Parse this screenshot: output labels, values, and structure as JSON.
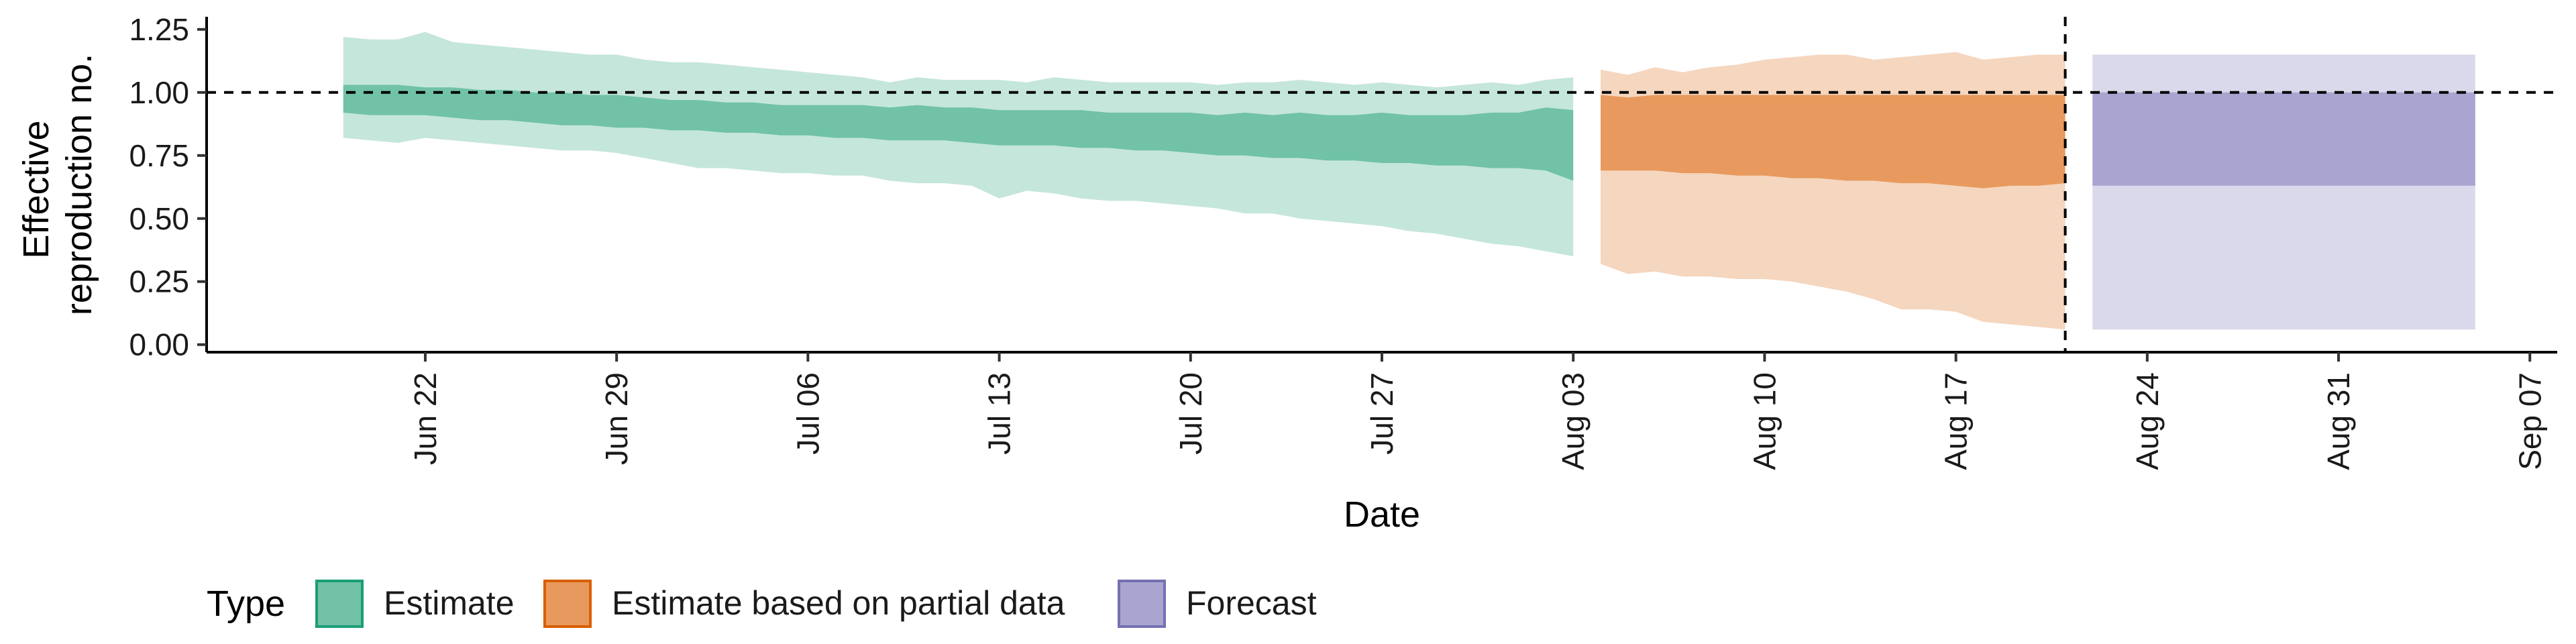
{
  "chart_data": {
    "type": "area",
    "title": "",
    "xlabel": "Date",
    "ylabel": [
      "Effective",
      "reproduction no."
    ],
    "ylim": [
      -0.03,
      1.3
    ],
    "xlim": [
      "2020-06-14",
      "2020-09-08"
    ],
    "x_ticks": [
      "2020-06-22",
      "2020-06-29",
      "2020-07-06",
      "2020-07-13",
      "2020-07-20",
      "2020-07-27",
      "2020-08-03",
      "2020-08-10",
      "2020-08-17",
      "2020-08-24",
      "2020-08-31",
      "2020-09-07"
    ],
    "x_tick_labels": [
      "Jun 22",
      "Jun 29",
      "Jul 06",
      "Jul 13",
      "Jul 20",
      "Jul 27",
      "Aug 03",
      "Aug 10",
      "Aug 17",
      "Aug 24",
      "Aug 31",
      "Sep 07"
    ],
    "y_ticks": [
      0.0,
      0.25,
      0.5,
      0.75,
      1.0,
      1.25
    ],
    "y_tick_labels": [
      "0.00",
      "0.25",
      "0.50",
      "0.75",
      "1.00",
      "1.25"
    ],
    "reference_hline": 1.0,
    "reference_vline": "2020-08-21",
    "grid": false,
    "legend": {
      "title": "Type",
      "position": "bottom",
      "entries": [
        {
          "label": "Estimate",
          "fill": "#71C2A6",
          "border": "#1B9E77"
        },
        {
          "label": "Estimate based on partial data",
          "fill": "#E89A5E",
          "border": "#D95F02"
        },
        {
          "label": "Forecast",
          "fill": "#A9A5D0",
          "border": "#7570B3"
        }
      ]
    },
    "series": [
      {
        "name": "Estimate",
        "color_outer": "#C5E6DB",
        "color_inner": "#71C2A6",
        "x": [
          "2020-06-19",
          "2020-06-20",
          "2020-06-21",
          "2020-06-22",
          "2020-06-23",
          "2020-06-24",
          "2020-06-25",
          "2020-06-26",
          "2020-06-27",
          "2020-06-28",
          "2020-06-29",
          "2020-06-30",
          "2020-07-01",
          "2020-07-02",
          "2020-07-03",
          "2020-07-04",
          "2020-07-05",
          "2020-07-06",
          "2020-07-07",
          "2020-07-08",
          "2020-07-09",
          "2020-07-10",
          "2020-07-11",
          "2020-07-12",
          "2020-07-13",
          "2020-07-14",
          "2020-07-15",
          "2020-07-16",
          "2020-07-17",
          "2020-07-18",
          "2020-07-19",
          "2020-07-20",
          "2020-07-21",
          "2020-07-22",
          "2020-07-23",
          "2020-07-24",
          "2020-07-25",
          "2020-07-26",
          "2020-07-27",
          "2020-07-28",
          "2020-07-29",
          "2020-07-30",
          "2020-07-31",
          "2020-08-01",
          "2020-08-02",
          "2020-08-03"
        ],
        "lower_90": [
          0.82,
          0.81,
          0.8,
          0.82,
          0.81,
          0.8,
          0.79,
          0.78,
          0.77,
          0.77,
          0.76,
          0.74,
          0.72,
          0.7,
          0.7,
          0.69,
          0.68,
          0.68,
          0.67,
          0.67,
          0.65,
          0.64,
          0.64,
          0.63,
          0.58,
          0.61,
          0.6,
          0.58,
          0.57,
          0.57,
          0.56,
          0.55,
          0.54,
          0.52,
          0.52,
          0.5,
          0.49,
          0.48,
          0.47,
          0.45,
          0.44,
          0.42,
          0.4,
          0.39,
          0.37,
          0.35
        ],
        "upper_90": [
          1.22,
          1.21,
          1.21,
          1.24,
          1.2,
          1.19,
          1.18,
          1.17,
          1.16,
          1.15,
          1.15,
          1.13,
          1.12,
          1.12,
          1.11,
          1.1,
          1.09,
          1.08,
          1.07,
          1.06,
          1.04,
          1.06,
          1.05,
          1.05,
          1.05,
          1.04,
          1.06,
          1.05,
          1.04,
          1.04,
          1.04,
          1.04,
          1.03,
          1.04,
          1.04,
          1.05,
          1.04,
          1.03,
          1.04,
          1.03,
          1.02,
          1.03,
          1.04,
          1.03,
          1.05,
          1.06
        ],
        "lower_50": [
          0.92,
          0.91,
          0.91,
          0.91,
          0.9,
          0.89,
          0.89,
          0.88,
          0.87,
          0.87,
          0.86,
          0.86,
          0.85,
          0.85,
          0.84,
          0.84,
          0.83,
          0.83,
          0.82,
          0.82,
          0.81,
          0.81,
          0.81,
          0.8,
          0.79,
          0.79,
          0.79,
          0.78,
          0.78,
          0.77,
          0.77,
          0.76,
          0.75,
          0.75,
          0.74,
          0.74,
          0.73,
          0.73,
          0.72,
          0.72,
          0.71,
          0.71,
          0.7,
          0.7,
          0.69,
          0.65
        ],
        "upper_50": [
          1.03,
          1.03,
          1.03,
          1.02,
          1.02,
          1.01,
          1.01,
          1.0,
          1.0,
          0.99,
          0.99,
          0.98,
          0.97,
          0.97,
          0.96,
          0.96,
          0.95,
          0.95,
          0.95,
          0.95,
          0.94,
          0.95,
          0.94,
          0.94,
          0.93,
          0.93,
          0.93,
          0.93,
          0.92,
          0.92,
          0.92,
          0.92,
          0.91,
          0.92,
          0.91,
          0.92,
          0.91,
          0.91,
          0.92,
          0.91,
          0.91,
          0.91,
          0.92,
          0.92,
          0.94,
          0.93
        ]
      },
      {
        "name": "Estimate based on partial data",
        "color_outer": "#F5D6BF",
        "color_inner": "#E89A5E",
        "x": [
          "2020-08-04",
          "2020-08-05",
          "2020-08-06",
          "2020-08-07",
          "2020-08-08",
          "2020-08-09",
          "2020-08-10",
          "2020-08-11",
          "2020-08-12",
          "2020-08-13",
          "2020-08-14",
          "2020-08-15",
          "2020-08-16",
          "2020-08-17",
          "2020-08-18",
          "2020-08-19",
          "2020-08-20",
          "2020-08-21"
        ],
        "lower_90": [
          0.32,
          0.28,
          0.29,
          0.27,
          0.27,
          0.26,
          0.26,
          0.25,
          0.23,
          0.21,
          0.18,
          0.14,
          0.14,
          0.13,
          0.09,
          0.08,
          0.07,
          0.06
        ],
        "upper_90": [
          1.09,
          1.07,
          1.1,
          1.08,
          1.1,
          1.11,
          1.13,
          1.14,
          1.15,
          1.15,
          1.13,
          1.14,
          1.15,
          1.16,
          1.13,
          1.14,
          1.15,
          1.15
        ],
        "lower_50": [
          0.69,
          0.69,
          0.69,
          0.68,
          0.68,
          0.67,
          0.67,
          0.66,
          0.66,
          0.65,
          0.65,
          0.64,
          0.64,
          0.63,
          0.62,
          0.63,
          0.63,
          0.64
        ],
        "upper_50": [
          0.99,
          0.98,
          0.99,
          0.99,
          0.99,
          0.99,
          0.99,
          0.99,
          0.99,
          0.99,
          0.99,
          0.99,
          0.99,
          0.99,
          0.99,
          0.99,
          0.99,
          0.99
        ]
      },
      {
        "name": "Forecast",
        "color_outer": "#DAD9EB",
        "color_inner": "#A9A5D0",
        "x": [
          "2020-08-22",
          "2020-09-05"
        ],
        "lower_90": [
          0.06,
          0.06
        ],
        "upper_90": [
          1.15,
          1.15
        ],
        "lower_50": [
          0.63,
          0.63
        ],
        "upper_50": [
          1.0,
          1.0
        ]
      }
    ]
  }
}
